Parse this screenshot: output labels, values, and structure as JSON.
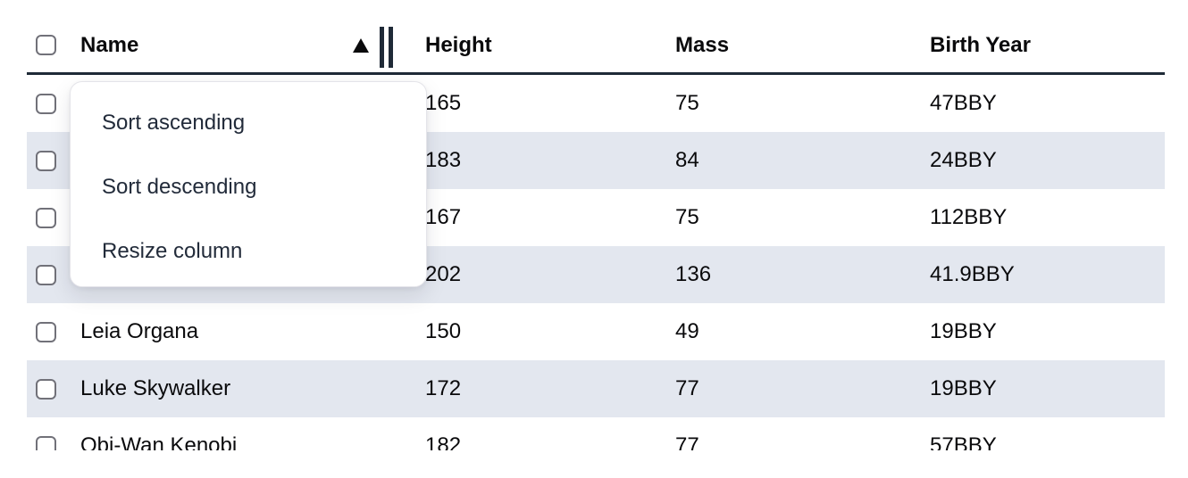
{
  "colors": {
    "header_rule": "#1f2a37",
    "row_stripe": "#e3e7ef",
    "row_text": "#0a0a0c",
    "menu_text": "#222b3a",
    "checkbox_border": "#717179",
    "resize_handle": "#1f2a37"
  },
  "table": {
    "columns": {
      "name": "Name",
      "height": "Height",
      "mass": "Mass",
      "birth_year": "Birth Year"
    },
    "sort": {
      "column": "Name",
      "direction": "ascending"
    },
    "rows": [
      {
        "name": "",
        "height": "165",
        "mass": "75",
        "birth_year": "47BBY"
      },
      {
        "name": "",
        "height": "183",
        "mass": "84",
        "birth_year": "24BBY"
      },
      {
        "name": "",
        "height": "167",
        "mass": "75",
        "birth_year": "112BBY"
      },
      {
        "name": "",
        "height": "202",
        "mass": "136",
        "birth_year": "41.9BBY"
      },
      {
        "name": "Leia Organa",
        "height": "150",
        "mass": "49",
        "birth_year": "19BBY"
      },
      {
        "name": "Luke Skywalker",
        "height": "172",
        "mass": "77",
        "birth_year": "19BBY"
      },
      {
        "name": "Obi-Wan Kenobi",
        "height": "182",
        "mass": "77",
        "birth_year": "57BBY"
      }
    ]
  },
  "column_menu": {
    "items": [
      {
        "label": "Sort ascending"
      },
      {
        "label": "Sort descending"
      },
      {
        "label": "Resize column"
      }
    ]
  }
}
